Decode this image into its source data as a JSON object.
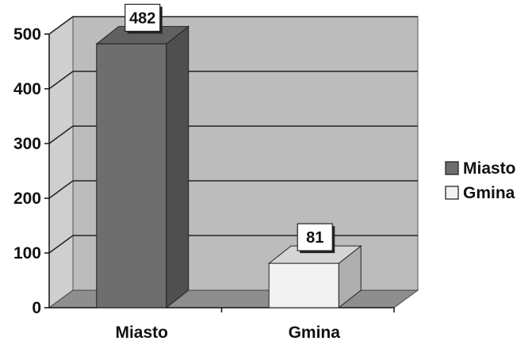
{
  "chart_data": {
    "type": "bar",
    "categories": [
      "Miasto",
      "Gmina"
    ],
    "values": [
      482,
      81
    ],
    "yticks": [
      0,
      100,
      200,
      300,
      400,
      500
    ],
    "ylim": [
      0,
      500
    ],
    "grid": true,
    "legend_position": "right",
    "legend": [
      {
        "label": "Miasto",
        "color": "#6e6e6e"
      },
      {
        "label": "Gmina",
        "color": "#f2f2f2"
      }
    ],
    "bar_colors": [
      "#6e6e6e",
      "#f2f2f2"
    ],
    "wall_color": "#bcbcbc",
    "floor_color": "#8e8e8e"
  }
}
